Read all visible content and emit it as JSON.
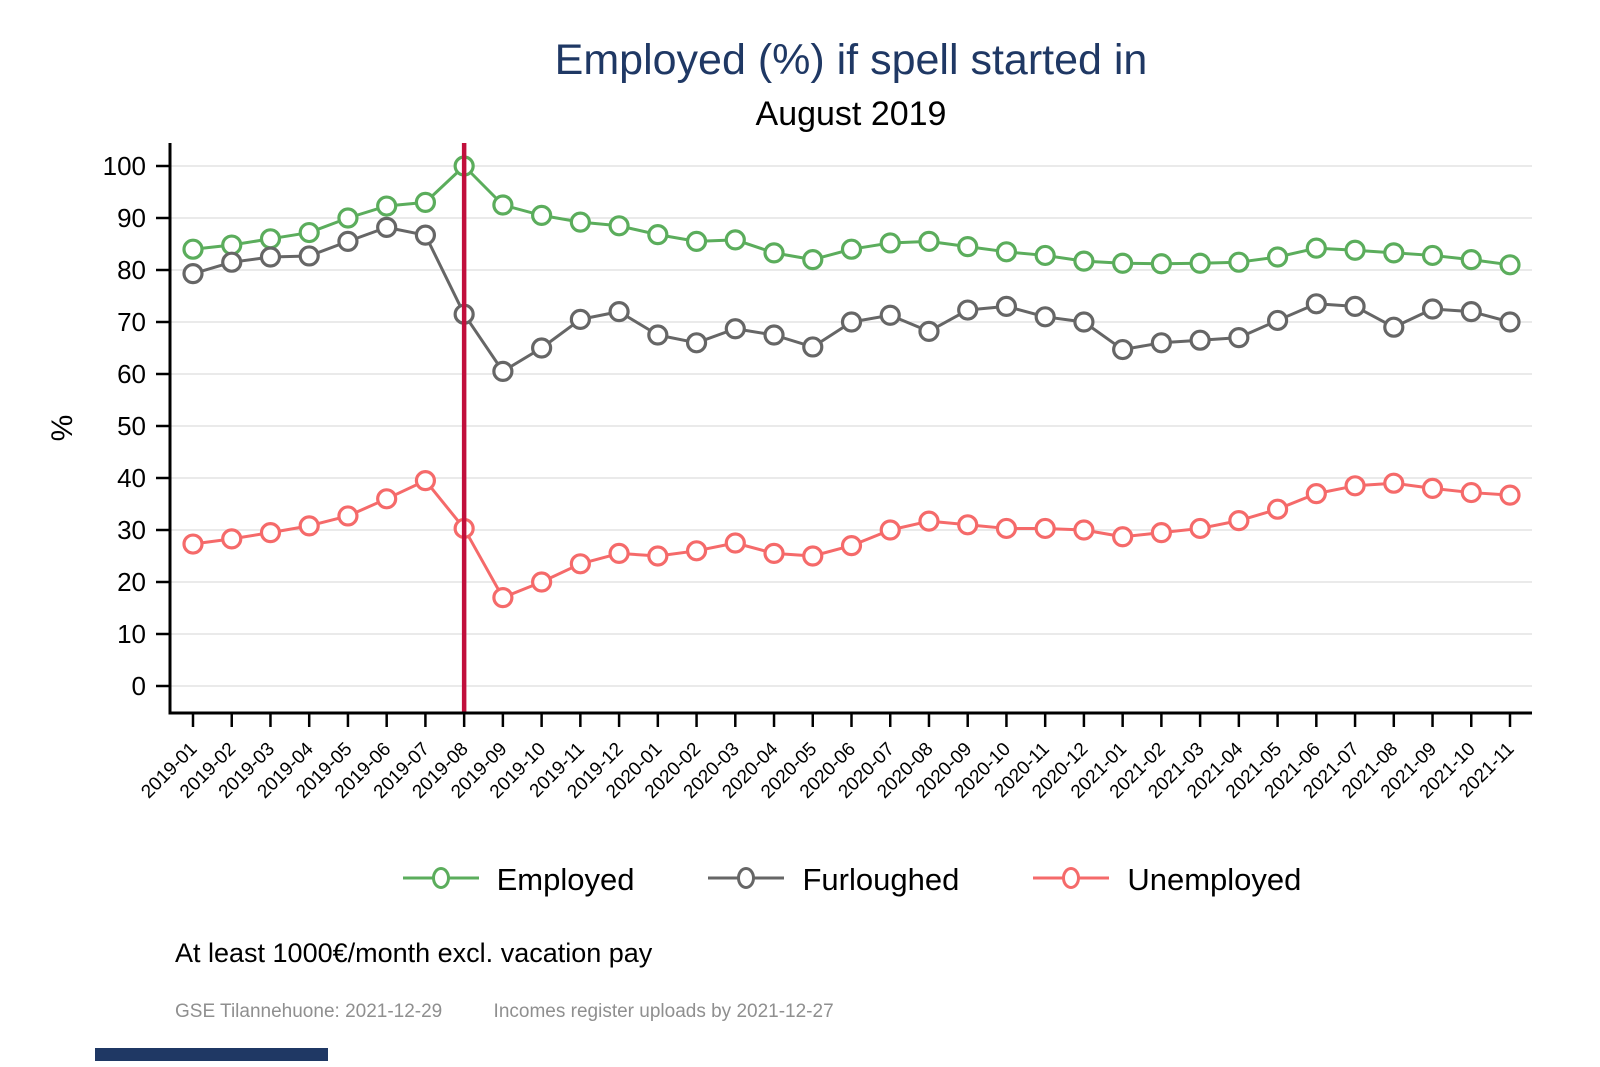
{
  "chart": {
    "title": "Employed (%) if spell started in",
    "subtitle": "August 2019"
  },
  "chart_data": {
    "type": "line",
    "x": [
      "2019-01",
      "2019-02",
      "2019-03",
      "2019-04",
      "2019-05",
      "2019-06",
      "2019-07",
      "2019-08",
      "2019-09",
      "2019-10",
      "2019-11",
      "2019-12",
      "2020-01",
      "2020-02",
      "2020-03",
      "2020-04",
      "2020-05",
      "2020-06",
      "2020-07",
      "2020-08",
      "2020-09",
      "2020-10",
      "2020-11",
      "2020-12",
      "2021-01",
      "2021-02",
      "2021-03",
      "2021-04",
      "2021-05",
      "2021-06",
      "2021-07",
      "2021-08",
      "2021-09",
      "2021-10",
      "2021-11"
    ],
    "series": [
      {
        "name": "Employed",
        "color": "#5BAD5C",
        "values": [
          84,
          84.8,
          86,
          87.2,
          90,
          92.3,
          93,
          100,
          92.5,
          90.5,
          89.2,
          88.5,
          86.8,
          85.5,
          85.8,
          83.3,
          82,
          84,
          85.2,
          85.5,
          84.5,
          83.5,
          82.8,
          81.7,
          81.3,
          81.2,
          81.3,
          81.5,
          82.5,
          84.2,
          83.8,
          83.3,
          82.8,
          82,
          81
        ]
      },
      {
        "name": "Furloughed",
        "color": "#666666",
        "values": [
          79.3,
          81.5,
          82.5,
          82.7,
          85.5,
          88.2,
          86.7,
          71.5,
          60.5,
          65,
          70.5,
          72,
          67.5,
          66,
          68.7,
          67.5,
          65.2,
          70,
          71.3,
          68.2,
          72.3,
          73,
          71,
          70,
          64.7,
          66,
          66.5,
          67,
          70.3,
          73.5,
          73,
          69,
          72.5,
          72,
          70
        ]
      },
      {
        "name": "Unemployed",
        "color": "#F56A6A",
        "values": [
          27.3,
          28.3,
          29.5,
          30.8,
          32.7,
          36,
          39.5,
          30.3,
          17,
          20,
          23.5,
          25.5,
          25,
          26,
          27.5,
          25.5,
          25,
          27,
          30,
          31.7,
          31,
          30.3,
          30.3,
          30,
          28.7,
          29.5,
          30.3,
          31.8,
          34,
          37,
          38.5,
          39,
          38,
          37.2,
          36.7
        ]
      }
    ],
    "ylabel": "%",
    "ylim": [
      0,
      100
    ],
    "yticks": [
      0,
      10,
      20,
      30,
      40,
      50,
      60,
      70,
      80,
      90,
      100
    ],
    "grid": "horizontal",
    "legend_position": "bottom",
    "marker": "hollow-circle",
    "reference_line": {
      "x": "2019-08",
      "orientation": "vertical",
      "color": "#C10F3C"
    }
  },
  "caption": {
    "note": "At least 1000€/month excl. vacation pay",
    "source_left": "GSE Tilannehuone: 2021-12-29",
    "source_right": "Incomes register uploads by 2021-12-27"
  },
  "colors": {
    "title": "#1F3864",
    "grid": "#DDDDDD",
    "axis": "#000000",
    "brand_bar": "#1F3864"
  }
}
